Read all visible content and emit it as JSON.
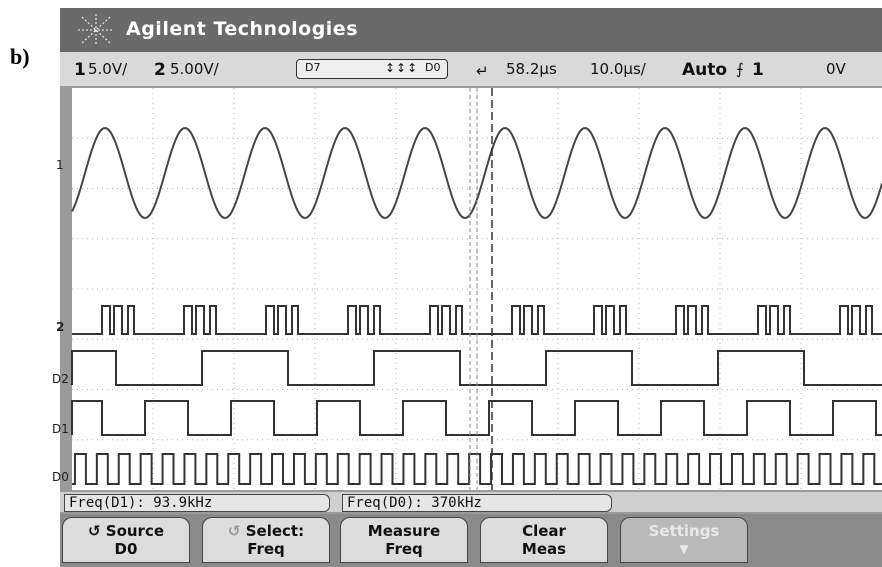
{
  "label": "b)",
  "header": {
    "brand": "Agilent Technologies"
  },
  "status": {
    "ch1": "1",
    "ch1_scale": "5.0V/",
    "ch2": "2",
    "ch2_scale": "5.00V/",
    "pod_high": "D7",
    "pod_low": "D0",
    "delay": "58.2µs",
    "timebase": "10.0µs/",
    "mode": "Auto",
    "trigger_source": "1",
    "trigger_level": "0V"
  },
  "channel_labels": [
    "1",
    "2",
    "D2",
    "D1",
    "D0"
  ],
  "measurements": [
    "Freq(D1): 93.9kHz",
    "Freq(D0): 370kHz"
  ],
  "softkeys": [
    {
      "top": "Source",
      "bottom": "D0"
    },
    {
      "top": "Select:",
      "bottom": "Freq"
    },
    {
      "top": "Measure",
      "bottom": "Freq"
    },
    {
      "top": "Clear",
      "bottom": "Meas"
    },
    {
      "top": "Settings"
    }
  ]
}
